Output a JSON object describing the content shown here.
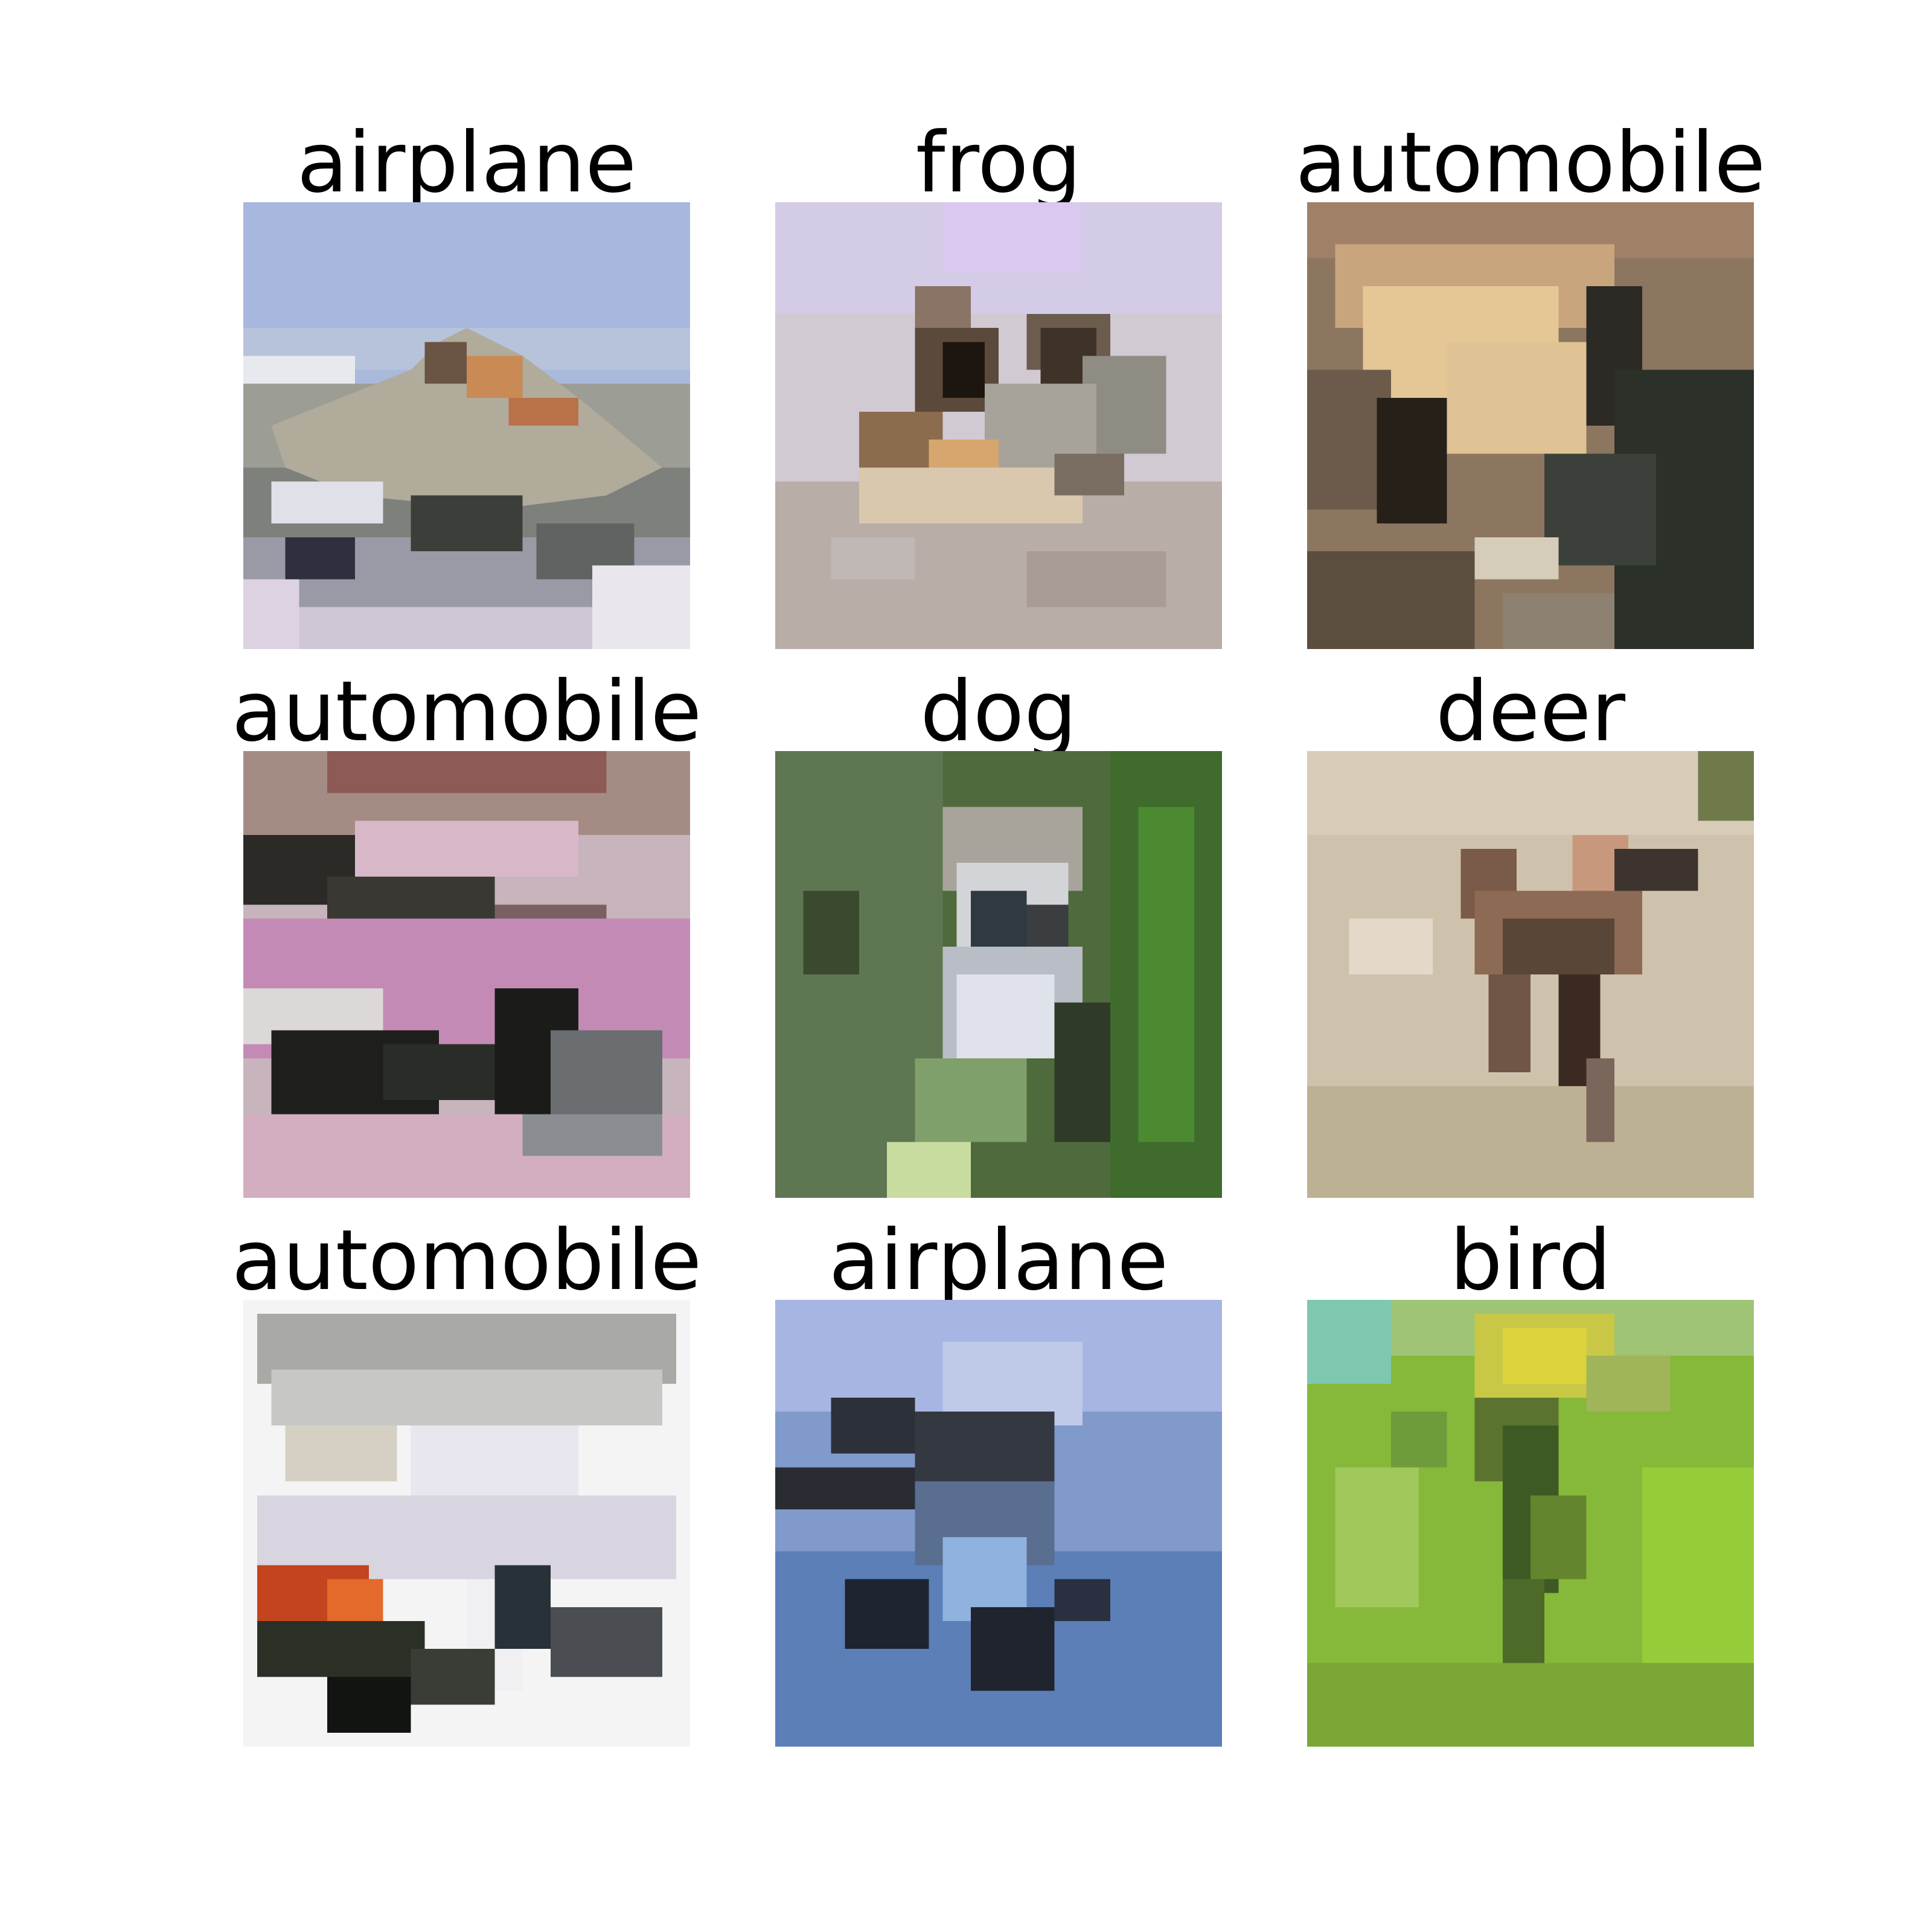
{
  "figure": {
    "panels": [
      {
        "label": "airplane",
        "scene": "pixelated aircraft in profile against pale blue sky above a grey ground"
      },
      {
        "label": "frog",
        "scene": "brown and grey blob on a pale lavender and beige background"
      },
      {
        "label": "automobile",
        "scene": "beige and dark brown blurred vehicle shape with dark patches"
      },
      {
        "label": "automobile",
        "scene": "pink car body with dark wheels on light road"
      },
      {
        "label": "dog",
        "scene": "white and dark figure on a green blurred background"
      },
      {
        "label": "deer",
        "scene": "brown four-legged animal on a beige sandy background"
      },
      {
        "label": "automobile",
        "scene": "white vehicle with red and dark areas on white background"
      },
      {
        "label": "airplane",
        "scene": "dark aircraft shape on a blue sky background"
      },
      {
        "label": "bird",
        "scene": "yellow-green bird among bright green foliage"
      }
    ],
    "colors": {
      "background": "#ffffff",
      "text": "#000000"
    }
  }
}
